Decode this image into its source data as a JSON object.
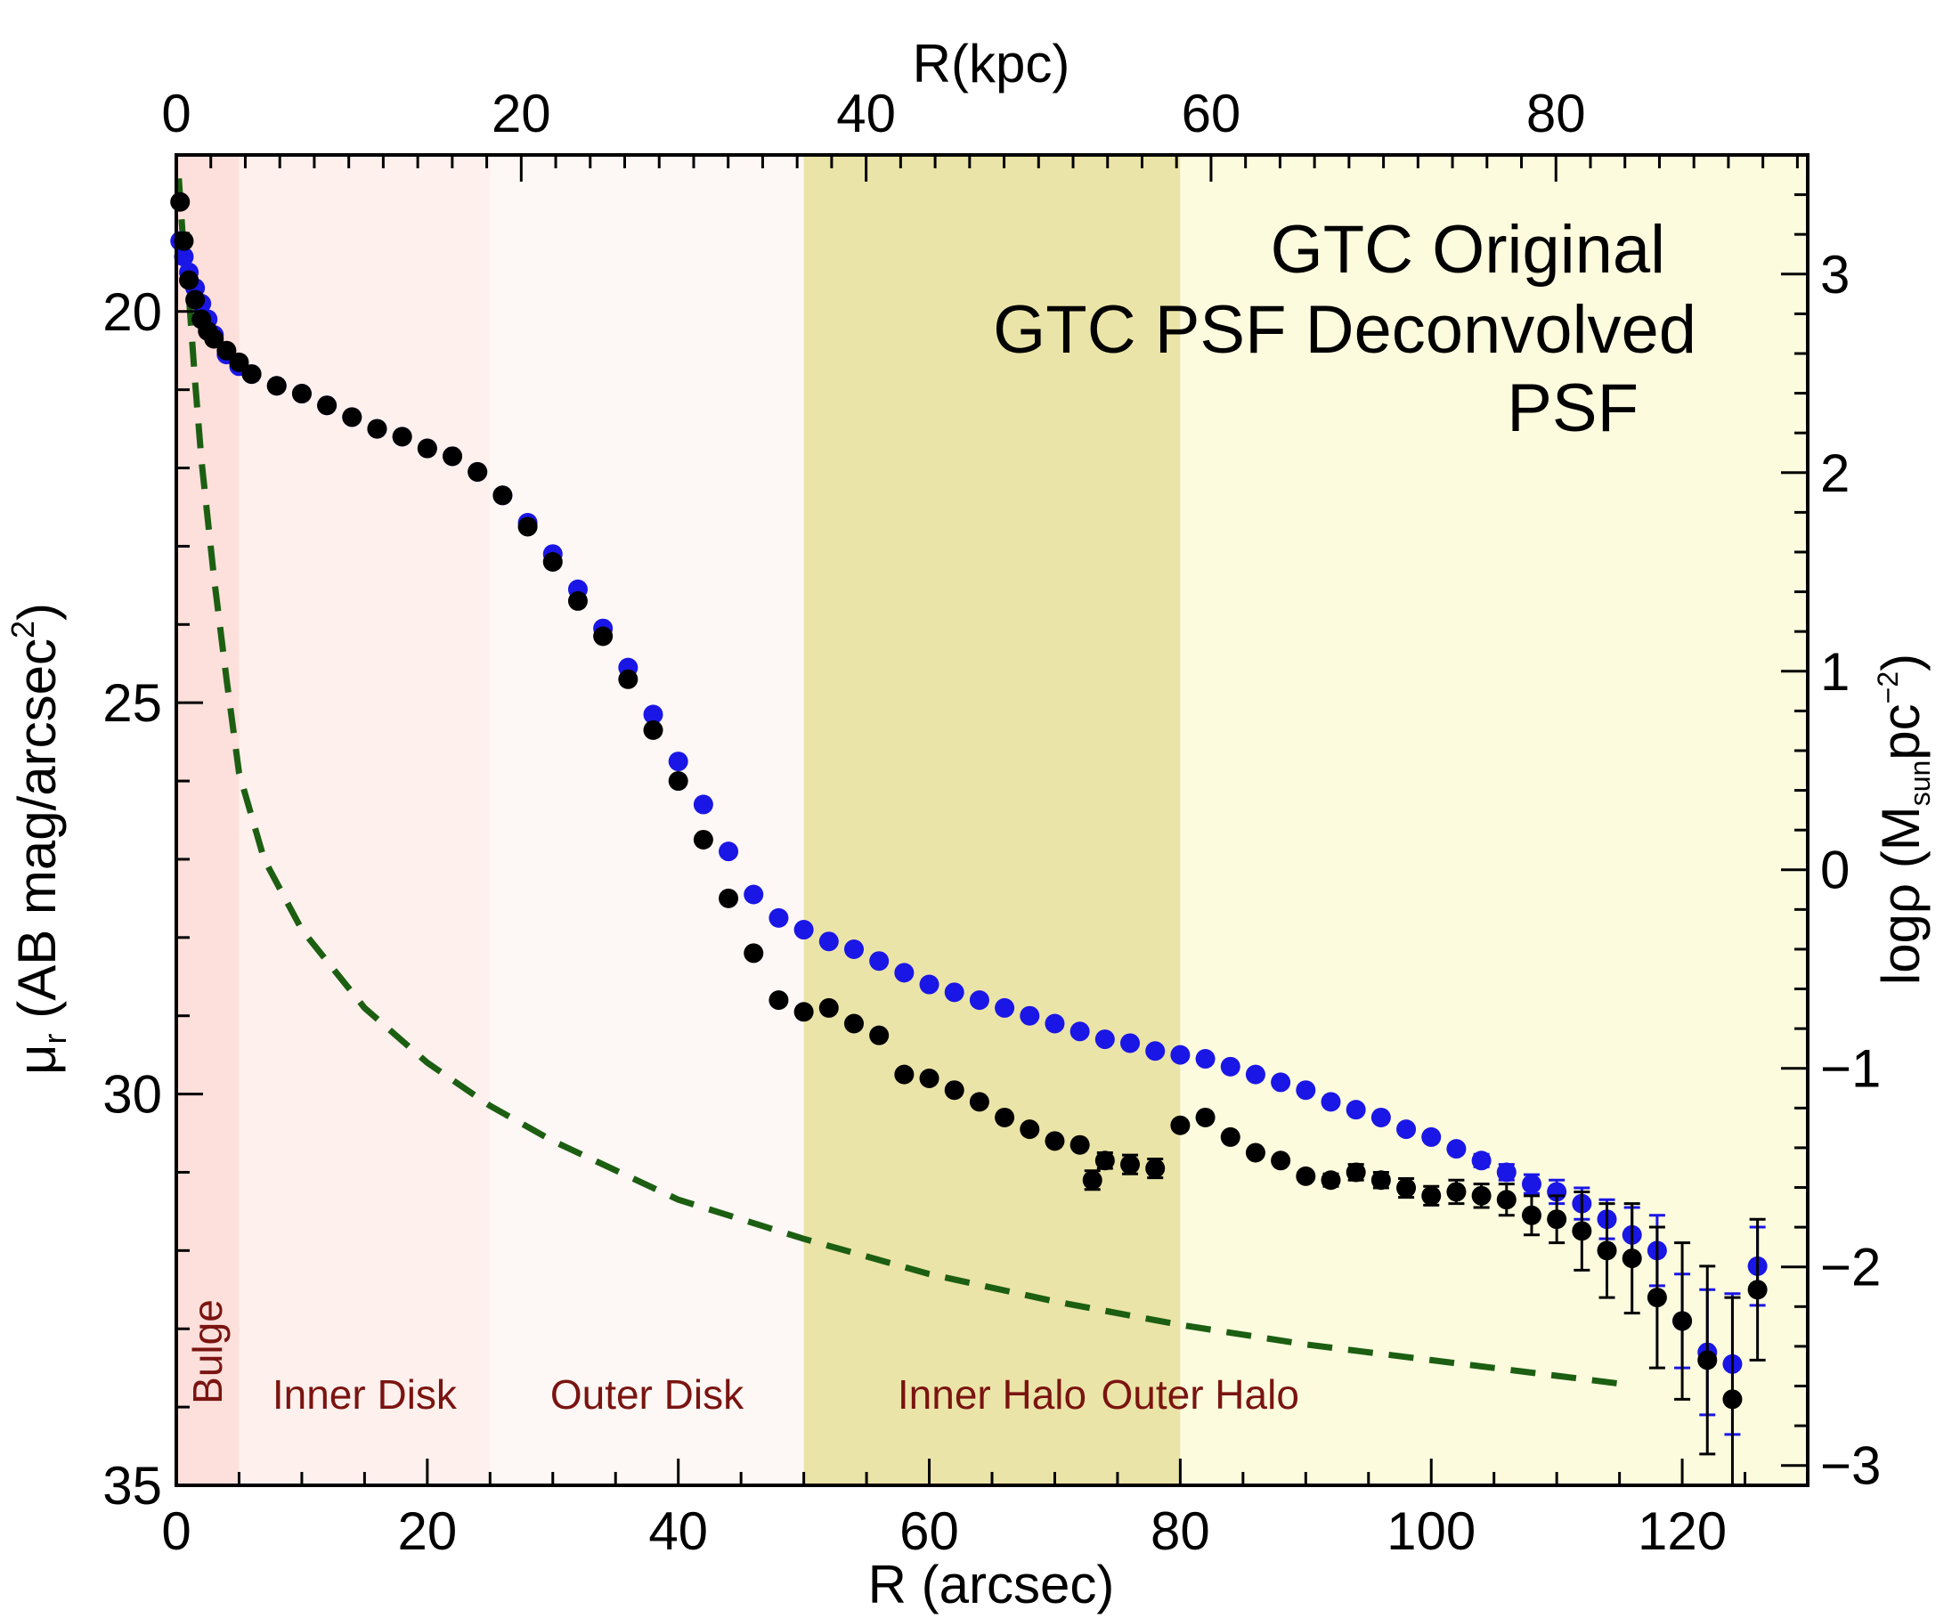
{
  "chart_data": {
    "type": "scatter",
    "title": "",
    "xlabel": "R (arcsec)",
    "ylabel": "μ_r (AB mag/arcsec²)",
    "ylabel_parts": {
      "mu": "μ",
      "sub": "r",
      "pre": " (AB mag/arcsec",
      "sup": "2",
      "post": ")"
    },
    "top_xlabel": "R(kpc)",
    "right_ylabel": "logρ (M_sun pc⁻²)",
    "right_ylabel_parts": {
      "pre": "logρ (M",
      "sub": "sun",
      "mid": "pc",
      "sup": "−2",
      "post": ")"
    },
    "xlim": [
      0,
      130
    ],
    "ylim": [
      35,
      18
    ],
    "top_xlim_kpc": [
      0,
      94.6
    ],
    "right_ylim": [
      -3.1,
      3.6
    ],
    "x_ticks": [
      "0",
      "20",
      "40",
      "60",
      "80",
      "100",
      "120"
    ],
    "x_tick_values": [
      0,
      20,
      40,
      60,
      80,
      100,
      120
    ],
    "y_ticks": [
      "20",
      "25",
      "30",
      "35"
    ],
    "y_tick_values": [
      20,
      25,
      30,
      35
    ],
    "top_ticks": [
      "0",
      "20",
      "40",
      "60",
      "80"
    ],
    "top_tick_values": [
      0,
      20,
      40,
      60,
      80
    ],
    "right_ticks": [
      "3",
      "2",
      "1",
      "0",
      "−1",
      "−2",
      "−3"
    ],
    "right_tick_values": [
      3,
      2,
      1,
      0,
      -1,
      -2,
      -3
    ],
    "regions": [
      {
        "label": "Bulge",
        "x0": 0,
        "x1": 5,
        "color": "#fddfdb",
        "vertical": true
      },
      {
        "label": "Inner Disk",
        "x0": 5,
        "x1": 25,
        "color": "#fdf0ed"
      },
      {
        "label": "Outer Disk",
        "x0": 25,
        "x1": 50,
        "color": "#fdf7f5"
      },
      {
        "label": "Inner Halo",
        "x0": 50,
        "x1": 80,
        "color": "#ebe4a8"
      },
      {
        "label": "Outer Halo",
        "x0": 80,
        "x1": 130,
        "color": "#fcfbde"
      }
    ],
    "legend_items": [
      {
        "label": "GTC Original",
        "color": "#1a16e6"
      },
      {
        "label": "GTC PSF Deconvolved",
        "color": "#000000"
      },
      {
        "label": "PSF",
        "color": "#1c5f12"
      }
    ],
    "series": [
      {
        "name": "GTC Original",
        "color": "#1a16e6",
        "x": [
          0.3,
          0.6,
          1,
          1.5,
          2,
          2.5,
          3,
          4,
          5,
          6,
          8,
          10,
          12,
          14,
          16,
          18,
          20,
          22,
          24,
          26,
          28,
          30,
          32,
          34,
          36,
          38,
          40,
          42,
          44,
          46,
          48,
          50,
          52,
          54,
          56,
          58,
          60,
          62,
          64,
          66,
          68,
          70,
          72,
          74,
          76,
          78,
          80,
          82,
          84,
          86,
          88,
          90,
          92,
          94,
          96,
          98,
          100,
          102,
          104,
          106,
          108,
          110,
          112,
          114,
          116,
          118,
          120,
          122,
          124,
          126
        ],
        "y": [
          19.1,
          19.3,
          19.5,
          19.7,
          19.9,
          20.1,
          20.3,
          20.55,
          20.7,
          20.8,
          20.95,
          21.05,
          21.2,
          21.35,
          21.5,
          21.6,
          21.75,
          21.85,
          22.05,
          22.35,
          22.7,
          23.1,
          23.55,
          24.05,
          24.55,
          25.15,
          25.75,
          26.3,
          26.9,
          27.45,
          27.75,
          27.9,
          28.05,
          28.15,
          28.3,
          28.45,
          28.6,
          28.7,
          28.8,
          28.9,
          29.0,
          29.1,
          29.2,
          29.3,
          29.35,
          29.45,
          29.5,
          29.55,
          29.65,
          29.75,
          29.85,
          29.95,
          30.1,
          30.2,
          30.3,
          30.45,
          30.55,
          30.7,
          30.85,
          31.0,
          31.15,
          31.25,
          31.4,
          31.6,
          31.8,
          32.0,
          32.9,
          33.3,
          33.45,
          32.2
        ],
        "err": [
          0,
          0,
          0,
          0,
          0,
          0,
          0,
          0,
          0,
          0,
          0,
          0,
          0,
          0,
          0,
          0,
          0,
          0,
          0,
          0,
          0,
          0,
          0,
          0,
          0,
          0,
          0,
          0,
          0,
          0,
          0,
          0,
          0,
          0,
          0,
          0,
          0,
          0,
          0,
          0,
          0,
          0,
          0,
          0,
          0,
          0,
          0,
          0,
          0,
          0,
          0,
          0,
          0,
          0,
          0,
          0,
          0.05,
          0.05,
          0.08,
          0.1,
          0.12,
          0.15,
          0.2,
          0.25,
          0.35,
          0.45,
          0.6,
          0.8,
          0.9,
          0.5
        ]
      },
      {
        "name": "GTC PSF Deconvolved",
        "color": "#000000",
        "x": [
          0.3,
          0.6,
          1,
          1.5,
          2,
          2.5,
          3,
          4,
          5,
          6,
          8,
          10,
          12,
          14,
          16,
          18,
          20,
          22,
          24,
          26,
          28,
          30,
          32,
          34,
          36,
          38,
          40,
          42,
          44,
          46,
          48,
          50,
          52,
          54,
          56,
          58,
          60,
          62,
          64,
          66,
          68,
          70,
          72,
          73,
          74,
          76,
          78,
          80,
          82,
          84,
          86,
          88,
          90,
          92,
          94,
          96,
          98,
          100,
          102,
          104,
          106,
          108,
          110,
          112,
          114,
          116,
          118,
          120,
          122,
          124,
          126
        ],
        "y": [
          18.6,
          19.1,
          19.6,
          19.85,
          20.1,
          20.25,
          20.35,
          20.5,
          20.65,
          20.8,
          20.95,
          21.05,
          21.2,
          21.35,
          21.5,
          21.6,
          21.75,
          21.85,
          22.05,
          22.35,
          22.75,
          23.2,
          23.7,
          24.15,
          24.7,
          25.35,
          26.0,
          26.75,
          27.5,
          28.2,
          28.8,
          28.95,
          28.9,
          29.1,
          29.25,
          29.75,
          29.8,
          29.95,
          30.1,
          30.3,
          30.45,
          30.6,
          30.65,
          31.1,
          30.85,
          30.9,
          30.95,
          30.4,
          30.3,
          30.55,
          30.75,
          30.85,
          31.05,
          31.1,
          31.0,
          31.1,
          31.2,
          31.3,
          31.25,
          31.3,
          31.35,
          31.55,
          31.6,
          31.75,
          32.0,
          32.1,
          32.6,
          32.9,
          33.4,
          33.9,
          32.5
        ],
        "err": [
          0,
          0,
          0,
          0,
          0,
          0,
          0,
          0,
          0,
          0,
          0,
          0,
          0,
          0,
          0,
          0,
          0,
          0,
          0,
          0,
          0,
          0,
          0,
          0,
          0,
          0,
          0,
          0,
          0,
          0,
          0,
          0,
          0,
          0,
          0,
          0,
          0,
          0,
          0,
          0,
          0,
          0,
          0,
          0.12,
          0.1,
          0.12,
          0.12,
          0,
          0,
          0,
          0,
          0,
          0,
          0.08,
          0.1,
          0.1,
          0.12,
          0.12,
          0.15,
          0.15,
          0.2,
          0.25,
          0.3,
          0.5,
          0.6,
          0.7,
          0.9,
          1.0,
          1.2,
          1.3,
          0.9
        ]
      },
      {
        "name": "PSF",
        "color": "#1c5f12",
        "style": "dashed",
        "x": [
          0.2,
          0.5,
          1,
          1.5,
          2,
          3,
          4,
          5,
          7,
          10,
          15,
          20,
          25,
          30,
          40,
          50,
          60,
          70,
          80,
          90,
          100,
          110,
          115
        ],
        "y": [
          18.3,
          19.0,
          19.8,
          20.9,
          21.9,
          23.4,
          24.7,
          25.9,
          27.0,
          27.9,
          28.9,
          29.6,
          30.15,
          30.6,
          31.35,
          31.85,
          32.3,
          32.65,
          32.95,
          33.2,
          33.4,
          33.6,
          33.7
        ]
      }
    ]
  }
}
